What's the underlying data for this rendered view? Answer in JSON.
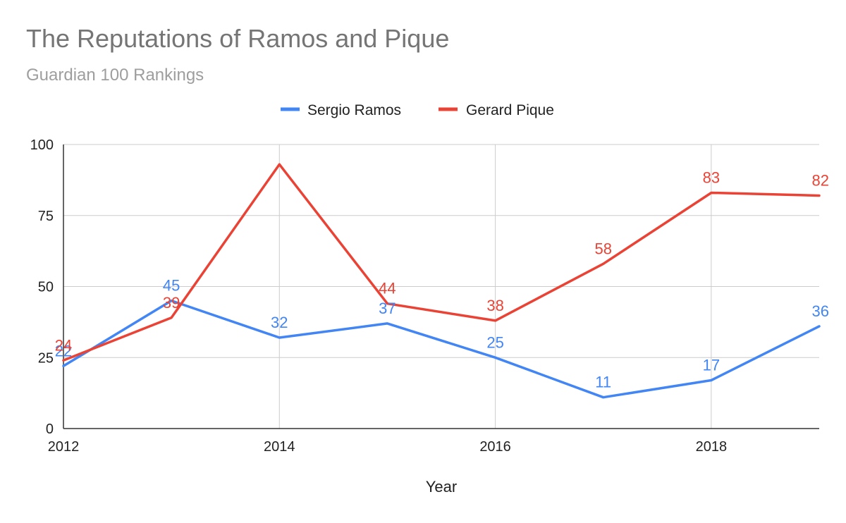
{
  "chart_data": {
    "type": "line",
    "title": "The Reputations of Ramos and Pique",
    "subtitle": "Guardian 100 Rankings",
    "xlabel": "Year",
    "ylabel": "",
    "x": [
      2012,
      2013,
      2014,
      2015,
      2016,
      2017,
      2018,
      2019
    ],
    "xlim": [
      2012,
      2019
    ],
    "ylim": [
      0,
      100
    ],
    "x_ticks": [
      "2012",
      "2014",
      "2016",
      "2018"
    ],
    "y_ticks": [
      "0",
      "25",
      "50",
      "75",
      "100"
    ],
    "grid": true,
    "legend_position": "top-center",
    "series": [
      {
        "name": "Sergio Ramos",
        "color": "#4285f4",
        "values": [
          22,
          45,
          32,
          37,
          25,
          11,
          17,
          36
        ],
        "labels": [
          "22",
          "45",
          "32",
          "37",
          "25",
          "11",
          "17",
          "36"
        ]
      },
      {
        "name": "Gerard Pique",
        "color": "#ea4335",
        "values": [
          24,
          39,
          93,
          44,
          38,
          58,
          83,
          82
        ],
        "labels": [
          "24",
          "39",
          "",
          "44",
          "38",
          "58",
          "83",
          "82"
        ]
      }
    ]
  }
}
